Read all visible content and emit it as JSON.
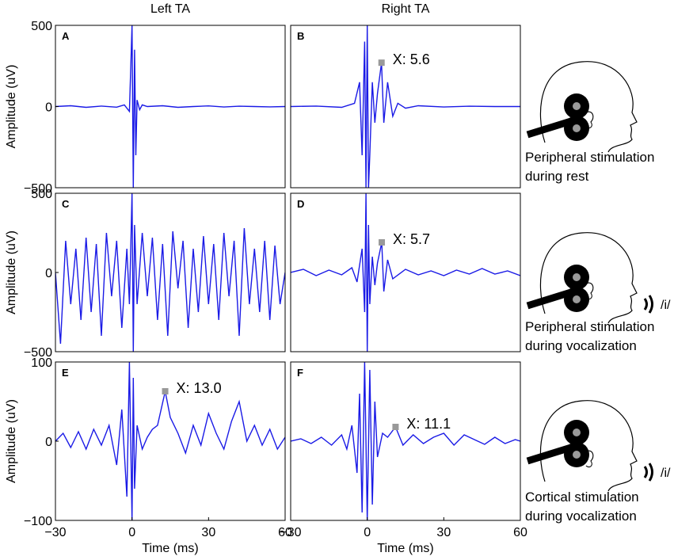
{
  "columns": [
    "Left TA",
    "Right TA"
  ],
  "colors": {
    "trace": "#1a1ae6",
    "marker": "#999999",
    "axis": "#000000"
  },
  "chart_data": [
    {
      "type": "line",
      "panel": "A",
      "column": "Left TA",
      "ylabel": "Amplitude (uV)",
      "xlabel": "",
      "xlim": [
        -30,
        60
      ],
      "ylim": [
        -500,
        500
      ],
      "yticks": [
        500,
        0,
        -500
      ],
      "ytick_labels": [
        "500",
        "0",
        "−500"
      ],
      "xticks": [],
      "series": [
        {
          "x": [
            -30,
            -24,
            -18,
            -12,
            -6,
            -3,
            -1,
            0,
            0.5,
            1,
            1.5,
            2,
            3,
            4,
            6,
            12,
            18,
            24,
            30,
            36,
            42,
            48,
            54,
            60
          ],
          "values": [
            0,
            5,
            -5,
            3,
            -4,
            10,
            -30,
            500,
            -500,
            350,
            -300,
            40,
            -20,
            10,
            0,
            5,
            -5,
            0,
            4,
            -3,
            2,
            0,
            -2,
            0
          ]
        }
      ],
      "annotations": []
    },
    {
      "type": "line",
      "panel": "B",
      "column": "Right TA",
      "ylabel": "",
      "xlabel": "",
      "xlim": [
        -30,
        60
      ],
      "ylim": [
        -500,
        500
      ],
      "yticks": [],
      "ytick_labels": [],
      "xticks": [],
      "series": [
        {
          "x": [
            -30,
            -20,
            -10,
            -5,
            -3,
            -2,
            -1,
            -0.5,
            0,
            0.5,
            1,
            2,
            3,
            4,
            5.6,
            6.5,
            8,
            10,
            12,
            15,
            20,
            30,
            40,
            50,
            60
          ],
          "values": [
            0,
            3,
            -5,
            20,
            150,
            -300,
            400,
            -500,
            500,
            -500,
            -300,
            150,
            -100,
            80,
            270,
            -100,
            150,
            -60,
            20,
            -10,
            5,
            -3,
            2,
            0,
            0
          ]
        }
      ],
      "annotations": [
        {
          "x": 5.6,
          "y": 270,
          "label": "X: 5.6"
        }
      ]
    },
    {
      "type": "line",
      "panel": "C",
      "column": "Left TA",
      "ylabel": "Amplitude (uV)",
      "xlabel": "",
      "xlim": [
        -30,
        60
      ],
      "ylim": [
        -500,
        500
      ],
      "yticks": [
        500,
        0,
        -500
      ],
      "ytick_labels": [
        "500",
        "0",
        "−500"
      ],
      "xticks": [],
      "series": [
        {
          "x": [
            -30,
            -28,
            -26,
            -24,
            -22,
            -20,
            -18,
            -16,
            -14,
            -12,
            -10,
            -8,
            -6,
            -4,
            -2,
            -1,
            0,
            0.5,
            1,
            2,
            4,
            6,
            8,
            10,
            12,
            14,
            16,
            18,
            20,
            22,
            24,
            26,
            28,
            30,
            32,
            34,
            36,
            38,
            40,
            42,
            44,
            46,
            48,
            50,
            52,
            54,
            56,
            58,
            60
          ],
          "values": [
            0,
            -450,
            200,
            -200,
            150,
            -300,
            220,
            -250,
            180,
            -400,
            250,
            -150,
            200,
            -350,
            150,
            -200,
            500,
            -500,
            300,
            -200,
            250,
            -150,
            220,
            -300,
            180,
            -400,
            260,
            -100,
            200,
            -350,
            150,
            -250,
            230,
            -200,
            180,
            -300,
            250,
            -150,
            200,
            -400,
            280,
            -200,
            150,
            -250,
            200,
            -300,
            170,
            -200,
            0
          ]
        }
      ],
      "annotations": []
    },
    {
      "type": "line",
      "panel": "D",
      "column": "Right TA",
      "ylabel": "",
      "xlabel": "",
      "xlim": [
        -30,
        60
      ],
      "ylim": [
        -500,
        500
      ],
      "yticks": [],
      "ytick_labels": [],
      "xticks": [],
      "series": [
        {
          "x": [
            -30,
            -25,
            -20,
            -15,
            -10,
            -6,
            -4,
            -2,
            -1,
            -0.5,
            0,
            0.5,
            1,
            2,
            3,
            4,
            5.7,
            6.5,
            8,
            10,
            15,
            20,
            25,
            30,
            35,
            40,
            45,
            50,
            55,
            60
          ],
          "values": [
            0,
            20,
            -20,
            15,
            -15,
            30,
            -60,
            150,
            -250,
            500,
            -500,
            300,
            -200,
            100,
            -80,
            60,
            190,
            -120,
            80,
            -40,
            20,
            -15,
            10,
            -20,
            15,
            -10,
            25,
            -10,
            10,
            -20
          ]
        }
      ],
      "annotations": [
        {
          "x": 5.7,
          "y": 190,
          "label": "X: 5.7"
        }
      ]
    },
    {
      "type": "line",
      "panel": "E",
      "column": "Left TA",
      "ylabel": "Amplitude (uV)",
      "xlabel": "Time (ms)",
      "xlim": [
        -30,
        60
      ],
      "ylim": [
        -100,
        100
      ],
      "yticks": [
        100,
        0,
        -100
      ],
      "ytick_labels": [
        "100",
        "0",
        "−100"
      ],
      "xticks": [
        -30,
        0,
        30,
        60
      ],
      "xtick_labels": [
        "−30",
        "0",
        "30",
        "60"
      ],
      "series": [
        {
          "x": [
            -30,
            -27,
            -24,
            -21,
            -18,
            -15,
            -12,
            -9,
            -6,
            -4,
            -2,
            -1,
            0,
            0.5,
            1,
            2,
            4,
            6,
            8,
            10,
            13,
            15,
            18,
            21,
            24,
            27,
            30,
            33,
            36,
            39,
            42,
            45,
            48,
            51,
            54,
            57,
            60
          ],
          "values": [
            0,
            10,
            -8,
            12,
            -10,
            15,
            -5,
            20,
            -30,
            40,
            -70,
            100,
            -100,
            80,
            -60,
            20,
            -10,
            5,
            15,
            20,
            63,
            30,
            10,
            -15,
            20,
            -5,
            35,
            10,
            -10,
            25,
            50,
            0,
            20,
            -5,
            15,
            -10,
            5
          ]
        }
      ],
      "annotations": [
        {
          "x": 13.0,
          "y": 63,
          "label": "X: 13.0"
        }
      ]
    },
    {
      "type": "line",
      "panel": "F",
      "column": "Right TA",
      "ylabel": "",
      "xlabel": "Time (ms)",
      "xlim": [
        -30,
        60
      ],
      "ylim": [
        -100,
        100
      ],
      "yticks": [],
      "ytick_labels": [],
      "xticks": [
        -30,
        0,
        30,
        60
      ],
      "xtick_labels": [
        "−30",
        "0",
        "30",
        "60"
      ],
      "series": [
        {
          "x": [
            -30,
            -26,
            -22,
            -18,
            -14,
            -10,
            -8,
            -6,
            -4,
            -3,
            -2,
            -1,
            0,
            1,
            2,
            3,
            4,
            6,
            8,
            11.1,
            14,
            18,
            22,
            26,
            30,
            34,
            38,
            42,
            46,
            50,
            54,
            58,
            60
          ],
          "values": [
            0,
            3,
            -3,
            5,
            -5,
            8,
            -10,
            20,
            -40,
            60,
            -90,
            100,
            -100,
            90,
            -80,
            50,
            -20,
            10,
            5,
            18,
            -5,
            8,
            -3,
            5,
            10,
            -5,
            8,
            2,
            -4,
            5,
            -3,
            2,
            0
          ]
        }
      ],
      "annotations": [
        {
          "x": 11.1,
          "y": 18,
          "label": "X: 11.1"
        }
      ]
    }
  ],
  "conditions": [
    {
      "text": "Peripheral stimulation\nduring rest",
      "line1": "Peripheral stimulation",
      "line2": "during rest",
      "vocal": ""
    },
    {
      "text": "Peripheral stimulation\nduring vocalization",
      "line1": "Peripheral stimulation",
      "line2": "during vocalization",
      "vocal": "/i/"
    },
    {
      "text": "Cortical stimulation\nduring vocalization",
      "line1": "Cortical stimulation",
      "line2": "during vocalization",
      "vocal": "/i/"
    }
  ]
}
